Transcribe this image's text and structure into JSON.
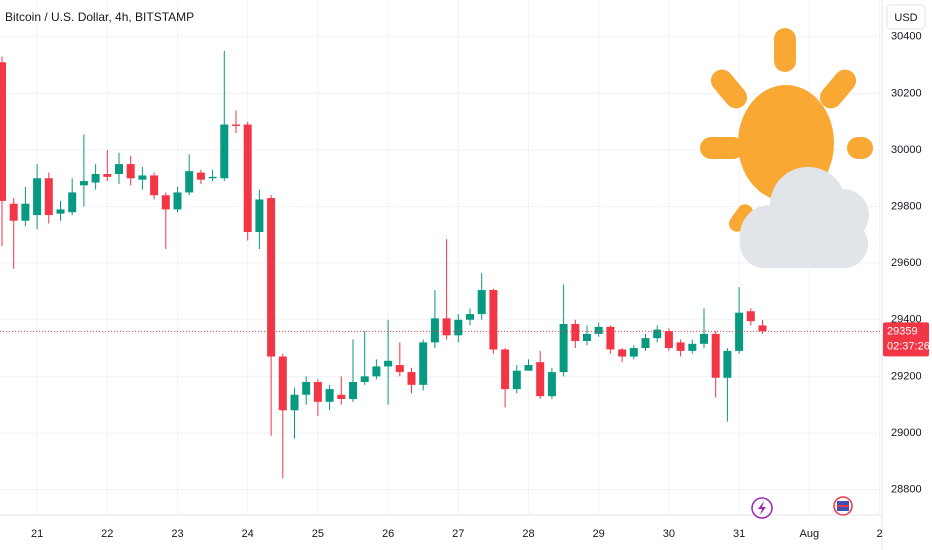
{
  "chart_data": {
    "type": "candlestick",
    "title": "Bitcoin / U.S. Dollar, 4h, BITSTAMP",
    "currency": "USD",
    "categories": [
      null,
      null,
      null,
      "21",
      null,
      null,
      null,
      null,
      null,
      "22",
      null,
      null,
      null,
      null,
      null,
      "23",
      null,
      null,
      null,
      null,
      null,
      "24",
      null,
      null,
      null,
      null,
      null,
      "25",
      null,
      null,
      null,
      null,
      null,
      "26",
      null,
      null,
      null,
      null,
      null,
      "27",
      null,
      null,
      null,
      null,
      null,
      "28",
      null,
      null,
      null,
      null,
      null,
      "29",
      null,
      null,
      null,
      null,
      null,
      "30",
      null,
      null,
      null,
      null,
      null,
      "31",
      null,
      null,
      null,
      null,
      null,
      "Aug",
      null,
      null,
      null,
      null,
      null,
      "2"
    ],
    "open": [
      30310,
      29810,
      29750,
      29770,
      29900,
      29775,
      29780,
      29875,
      29885,
      29915,
      29915,
      29950,
      29895,
      29910,
      29840,
      29790,
      29850,
      29920,
      29900,
      29900,
      30090,
      30090,
      29710,
      29830,
      29270,
      29080,
      29135,
      29180,
      29110,
      29135,
      29120,
      29180,
      29200,
      29235,
      29240,
      29215,
      29170,
      29320,
      29405,
      29345,
      29400,
      29420,
      29505,
      29295,
      29155,
      29220,
      29250,
      29130,
      29215,
      29385,
      29325,
      29350,
      29375,
      29295,
      29270,
      29300,
      29335,
      29360,
      29320,
      29290,
      29315,
      29350,
      29195,
      29290,
      29430,
      29380,
      null,
      null,
      null,
      null,
      null,
      null,
      null,
      null,
      null,
      null
    ],
    "high": [
      30330,
      29830,
      29870,
      29950,
      29920,
      29820,
      29900,
      30055,
      29950,
      30000,
      29990,
      29980,
      29940,
      29920,
      29850,
      29870,
      29985,
      29930,
      29930,
      30350,
      30140,
      30100,
      29860,
      29840,
      29280,
      29160,
      29200,
      29190,
      29170,
      29200,
      29330,
      29360,
      29260,
      29400,
      29320,
      29230,
      29330,
      29505,
      29685,
      29420,
      29440,
      29565,
      29510,
      29300,
      29240,
      29260,
      29290,
      29230,
      29525,
      29400,
      29380,
      29390,
      29380,
      29300,
      29310,
      29350,
      29380,
      29370,
      29330,
      29330,
      29440,
      29360,
      29300,
      29515,
      29440,
      29400,
      null,
      null,
      null,
      null,
      null,
      null,
      null,
      null,
      null,
      null
    ],
    "low": [
      29660,
      29580,
      29730,
      29720,
      29740,
      29750,
      29770,
      29800,
      29860,
      29890,
      29880,
      29875,
      29860,
      29825,
      29650,
      29780,
      29840,
      29880,
      29890,
      29890,
      30060,
      29680,
      29650,
      28990,
      28840,
      28980,
      29100,
      29060,
      29080,
      29100,
      29110,
      29170,
      29190,
      29100,
      29200,
      29140,
      29150,
      29300,
      29330,
      29320,
      29380,
      29400,
      29280,
      29090,
      29140,
      29220,
      29120,
      29120,
      29200,
      29300,
      29310,
      29340,
      29280,
      29250,
      29260,
      29290,
      29320,
      29290,
      29270,
      29280,
      29300,
      29125,
      29040,
      29280,
      29380,
      29350,
      null,
      null,
      null,
      null,
      null,
      null,
      null,
      null,
      null,
      null
    ],
    "close": [
      29820,
      29750,
      29810,
      29900,
      29770,
      29790,
      29850,
      29890,
      29915,
      29905,
      29950,
      29900,
      29910,
      29840,
      29790,
      29850,
      29925,
      29895,
      29905,
      30090,
      30085,
      29710,
      29825,
      29270,
      29080,
      29135,
      29180,
      29110,
      29155,
      29120,
      29180,
      29200,
      29235,
      29255,
      29215,
      29170,
      29320,
      29405,
      29345,
      29400,
      29420,
      29505,
      29295,
      29155,
      29220,
      29240,
      29130,
      29215,
      29385,
      29325,
      29350,
      29375,
      29295,
      29270,
      29300,
      29335,
      29365,
      29300,
      29290,
      29315,
      29350,
      29195,
      29290,
      29425,
      29395,
      29359,
      null,
      null,
      null,
      null,
      null,
      null,
      null,
      null,
      null,
      null
    ],
    "up_color": "#089981",
    "down_color": "#f23645",
    "last_price": 29359,
    "countdown": "02:37:26",
    "ylim": [
      28710,
      30530
    ],
    "yticks": [
      28800,
      29000,
      29200,
      29400,
      29600,
      29800,
      30000,
      30200,
      30400
    ],
    "grid": true
  }
}
